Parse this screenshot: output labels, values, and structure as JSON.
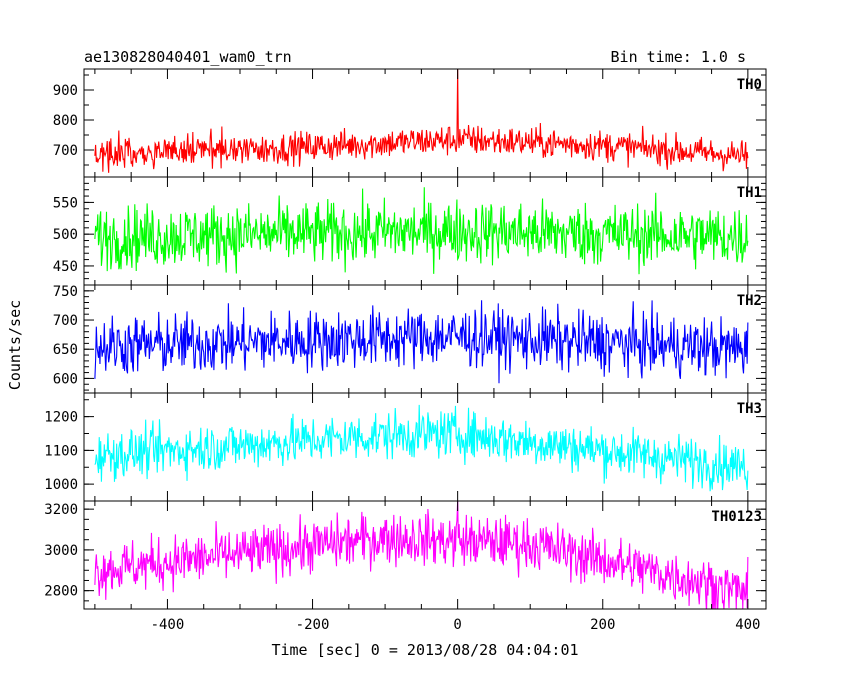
{
  "header": {
    "title": "ae130828040401_wam0_trn",
    "bin_time": "Bin time: 1.0 s"
  },
  "chart_data": {
    "type": "line",
    "xlabel": "Time [sec] 0 = 2013/08/28 04:04:01",
    "ylabel": "Counts/sec",
    "xlim": [
      -515,
      425
    ],
    "x_range_data": [
      -500,
      400
    ],
    "x_step": 1,
    "xticks": [
      -400,
      -200,
      0,
      200,
      400
    ],
    "panels": [
      {
        "name": "TH0",
        "color": "#ff0000",
        "ylim": [
          610,
          970
        ],
        "yticks": [
          700,
          800,
          900
        ],
        "mean_profile": [
          [
            -500,
            690
          ],
          [
            -250,
            705
          ],
          [
            0,
            735
          ],
          [
            200,
            715
          ],
          [
            400,
            680
          ]
        ],
        "noise": 26,
        "spikes": [
          [
            0,
            970
          ]
        ]
      },
      {
        "name": "TH1",
        "color": "#00ff00",
        "ylim": [
          420,
          590
        ],
        "yticks": [
          450,
          500,
          550
        ],
        "mean_profile": [
          [
            -500,
            495
          ],
          [
            0,
            505
          ],
          [
            400,
            495
          ]
        ],
        "noise": 25,
        "spikes": []
      },
      {
        "name": "TH2",
        "color": "#0000ff",
        "ylim": [
          575,
          760
        ],
        "yticks": [
          600,
          650,
          700,
          750
        ],
        "mean_profile": [
          [
            -500,
            655
          ],
          [
            0,
            672
          ],
          [
            400,
            650
          ]
        ],
        "noise": 26,
        "spikes": []
      },
      {
        "name": "TH3",
        "color": "#00ffff",
        "ylim": [
          950,
          1270
        ],
        "yticks": [
          1000,
          1100,
          1200
        ],
        "mean_profile": [
          [
            -500,
            1085
          ],
          [
            -100,
            1145
          ],
          [
            0,
            1150
          ],
          [
            400,
            1050
          ]
        ],
        "noise": 36,
        "spikes": []
      },
      {
        "name": "TH0123",
        "color": "#ff00ff",
        "ylim": [
          2710,
          3240
        ],
        "yticks": [
          2800,
          3000,
          3200
        ],
        "mean_profile": [
          [
            -500,
            2900
          ],
          [
            -100,
            3060
          ],
          [
            100,
            3030
          ],
          [
            400,
            2790
          ]
        ],
        "noise": 65,
        "spikes": [
          [
            0,
            3240
          ]
        ]
      }
    ]
  }
}
